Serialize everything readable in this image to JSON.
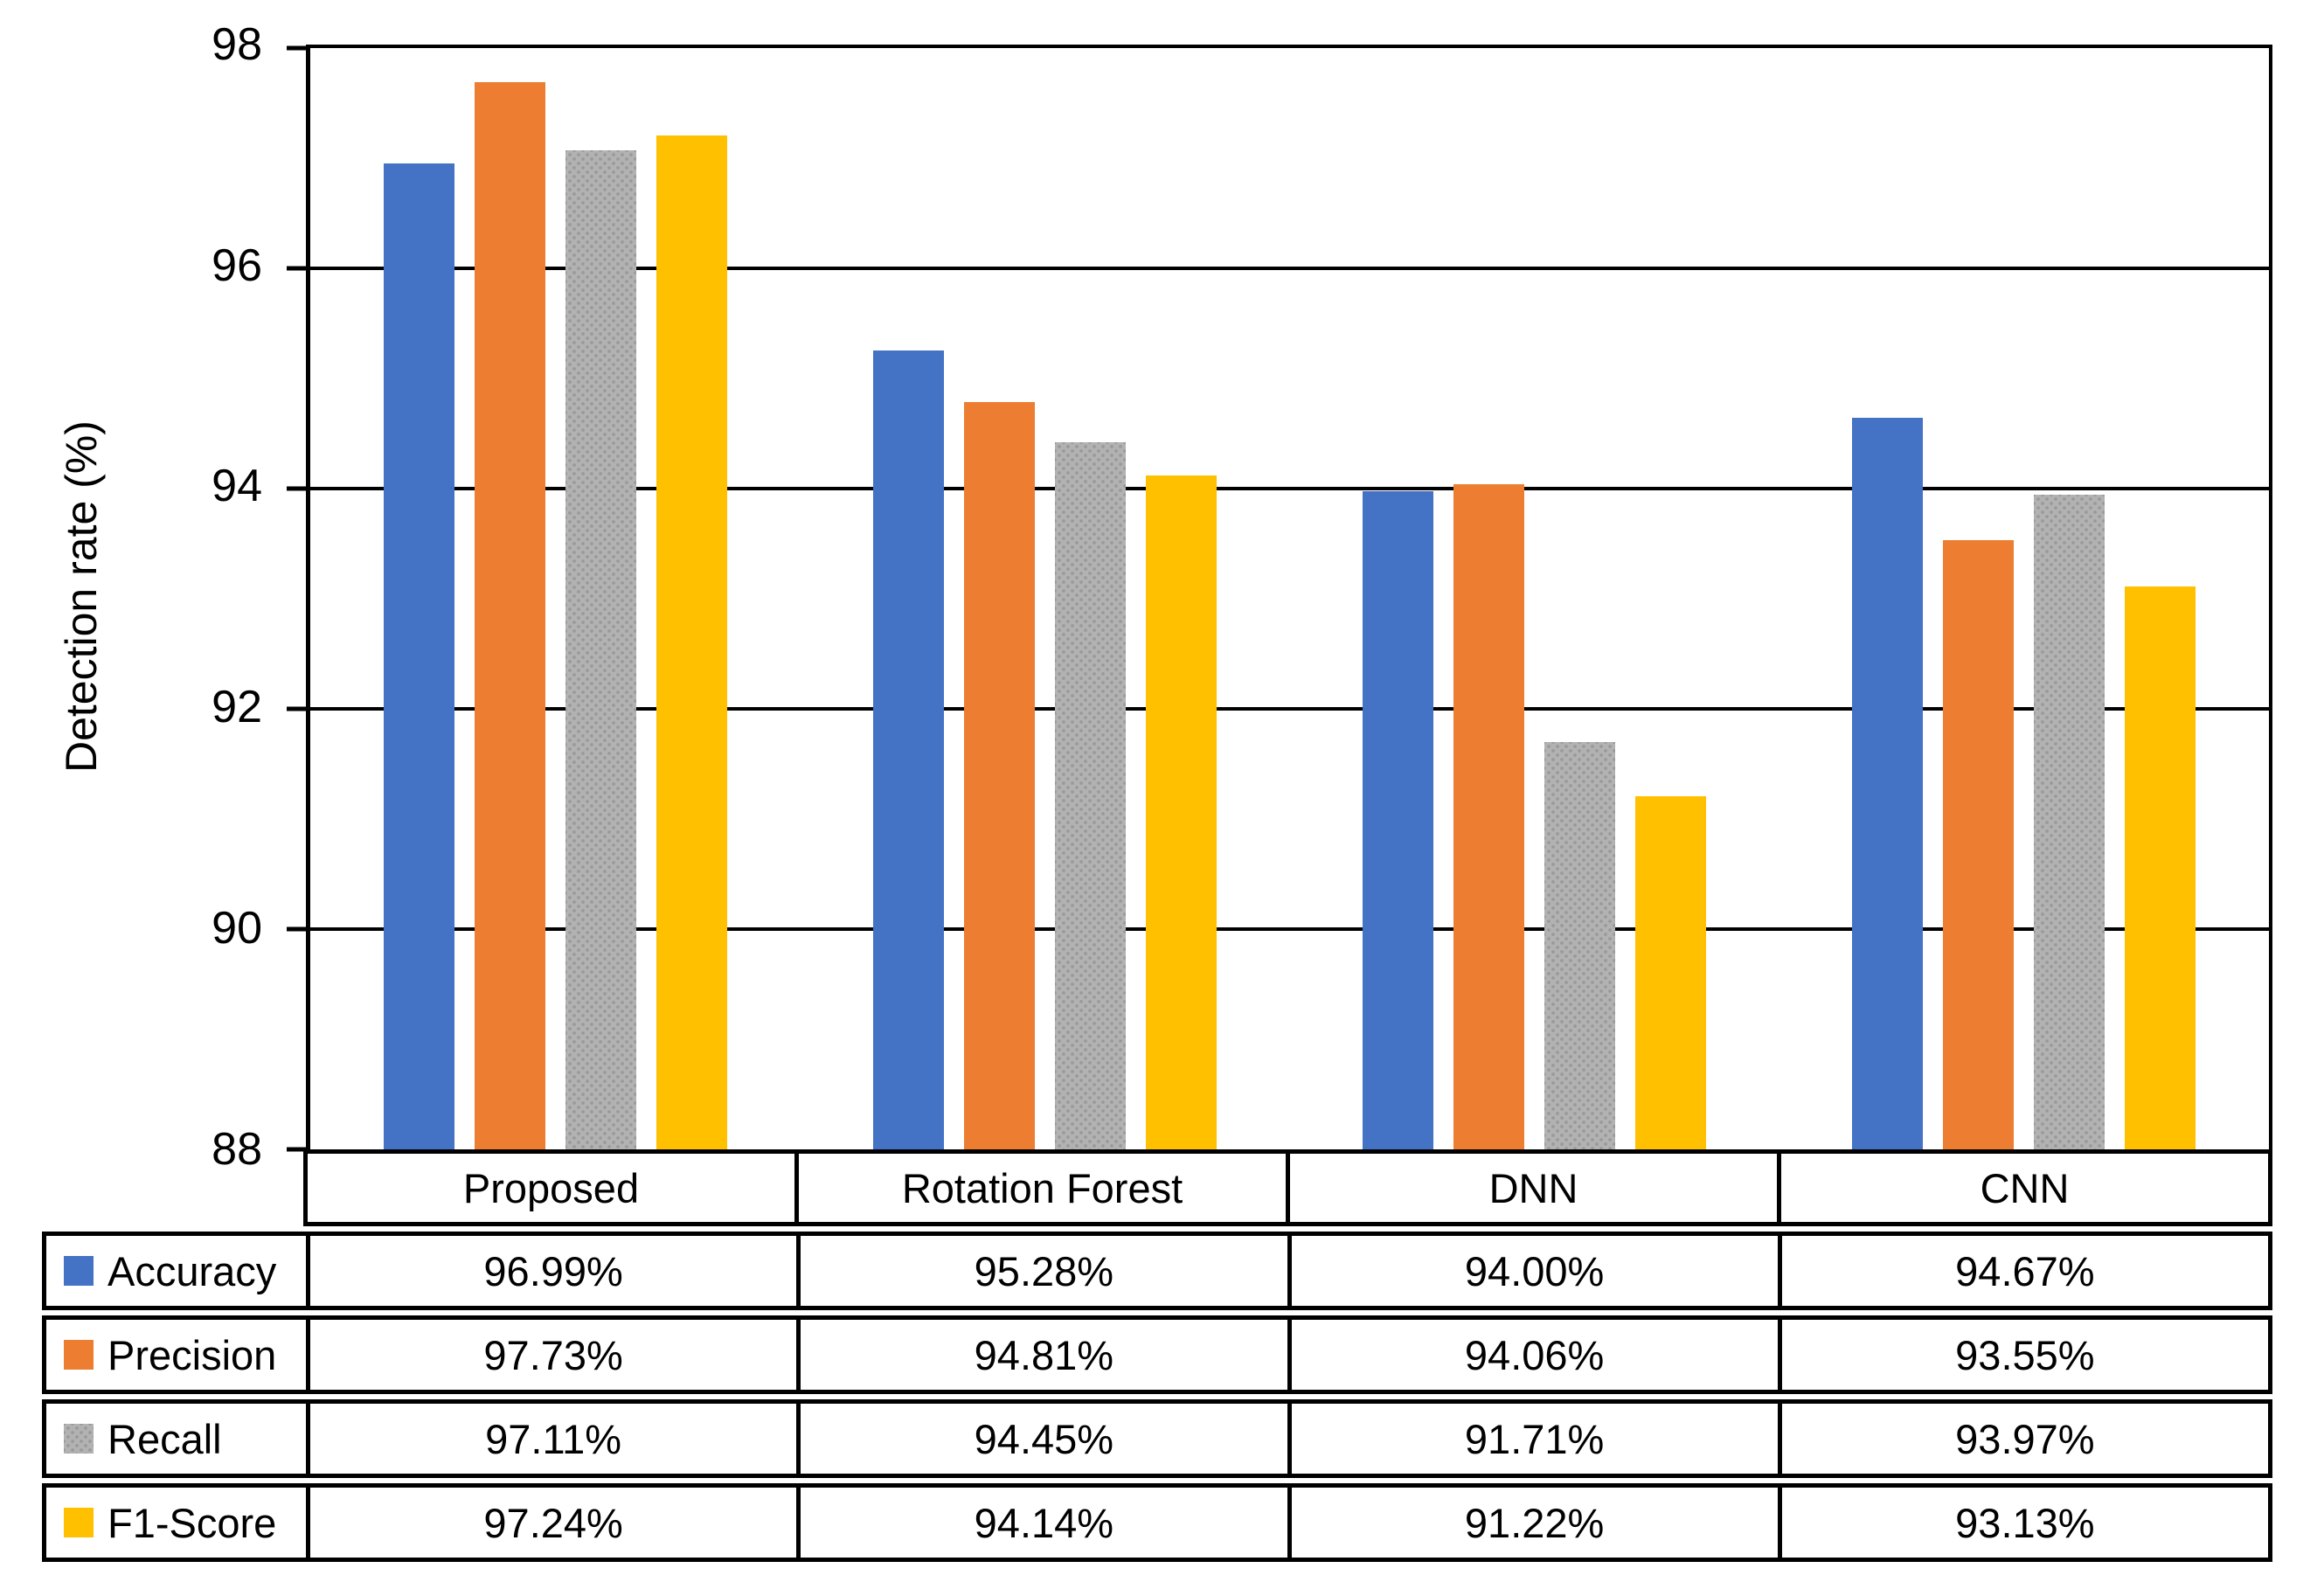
{
  "chart_data": {
    "type": "bar",
    "title": "",
    "xlabel": "",
    "ylabel": "Detection rate (%)",
    "ylim": [
      88,
      98
    ],
    "ytick_step": 2,
    "yticks": [
      "98",
      "96",
      "94",
      "92",
      "90",
      "88"
    ],
    "grid": true,
    "legend_position": "table-left",
    "categories": [
      "Proposed",
      "Rotation Forest",
      "DNN",
      "CNN"
    ],
    "series": [
      {
        "name": "Accuracy",
        "color": "#4472C4",
        "pattern": false,
        "values": [
          96.99,
          95.28,
          94.0,
          94.67
        ],
        "display": [
          "96.99%",
          "95.28%",
          "94.00%",
          "94.67%"
        ]
      },
      {
        "name": "Precision",
        "color": "#ED7D31",
        "pattern": false,
        "values": [
          97.73,
          94.81,
          94.06,
          93.55
        ],
        "display": [
          "97.73%",
          "94.81%",
          "94.06%",
          "93.55%"
        ]
      },
      {
        "name": "Recall",
        "color": "#A5A5A5",
        "pattern": true,
        "values": [
          97.11,
          94.45,
          91.71,
          93.97
        ],
        "display": [
          "97.11%",
          "94.45%",
          "91.71%",
          "93.97%"
        ]
      },
      {
        "name": "F1-Score",
        "color": "#FFC000",
        "pattern": false,
        "values": [
          97.24,
          94.14,
          91.22,
          93.13
        ],
        "display": [
          "97.24%",
          "94.14%",
          "91.22%",
          "93.13%"
        ]
      }
    ]
  },
  "colors": {
    "axis": "#000000",
    "grid": "#000000",
    "background": "#FFFFFF"
  }
}
